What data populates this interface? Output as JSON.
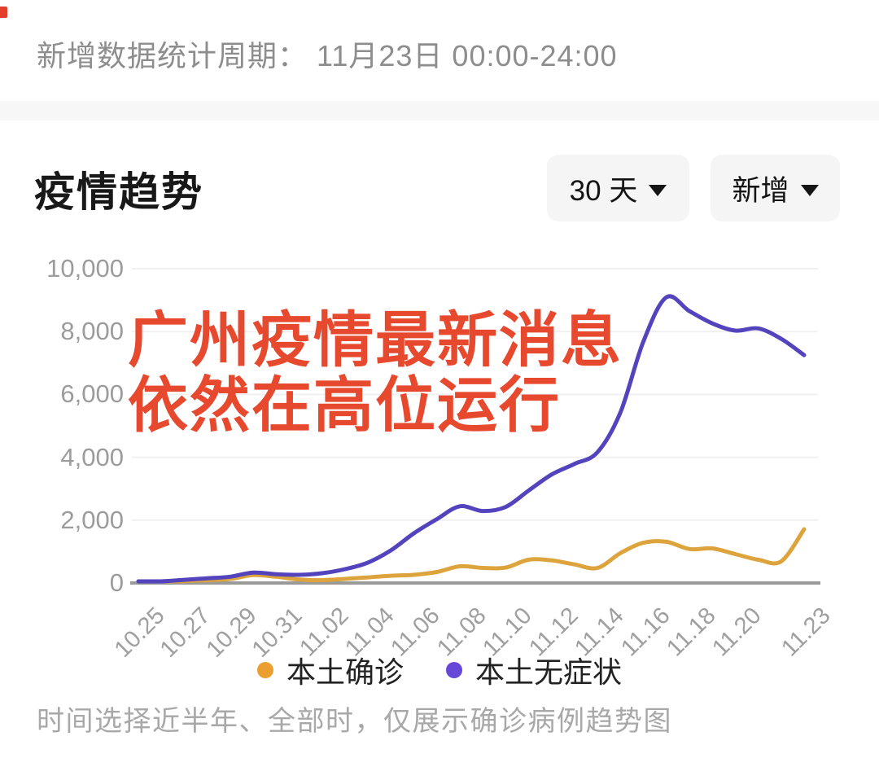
{
  "header": {
    "period_label": "新增数据统计周期： 11月23日 00:00-24:00"
  },
  "section": {
    "title": "疫情趋势",
    "range_dropdown": {
      "label": "30 天"
    },
    "metric_dropdown": {
      "label": "新增"
    }
  },
  "overlay": {
    "line1": "广州疫情最新消息",
    "line2": "依然在高位运行",
    "color": "#e7492f"
  },
  "footer": {
    "note": "时间选择近半年、全部时，仅展示确诊病例趋势图"
  },
  "chart_data": {
    "type": "line",
    "title": "疫情趋势",
    "x": [
      "10.25",
      "10.26",
      "10.27",
      "10.28",
      "10.29",
      "10.30",
      "10.31",
      "11.01",
      "11.02",
      "11.03",
      "11.04",
      "11.05",
      "11.06",
      "11.07",
      "11.08",
      "11.09",
      "11.10",
      "11.11",
      "11.12",
      "11.13",
      "11.14",
      "11.15",
      "11.16",
      "11.17",
      "11.18",
      "11.19",
      "11.20",
      "11.21",
      "11.22",
      "11.23"
    ],
    "x_tick_labels": [
      "10.25",
      "10.27",
      "10.29",
      "10.31",
      "11.02",
      "11.04",
      "11.06",
      "11.08",
      "11.10",
      "11.12",
      "11.14",
      "11.16",
      "11.18",
      "11.20",
      "11.23"
    ],
    "y_ticks": [
      0,
      2000,
      4000,
      6000,
      8000,
      10000
    ],
    "ylim": [
      0,
      10000
    ],
    "grid": true,
    "legend_position": "bottom",
    "axis_colors": {
      "gridline": "#f0f0f2",
      "zero_line": "#9a9a9a",
      "tick_text": "#9c9c9c"
    },
    "series": [
      {
        "name": "本土确诊",
        "color": "#dda43e",
        "dot_color": "#eb9f31",
        "values": [
          20,
          30,
          60,
          90,
          130,
          250,
          200,
          110,
          90,
          130,
          180,
          230,
          260,
          350,
          530,
          480,
          490,
          740,
          720,
          590,
          480,
          950,
          1280,
          1310,
          1080,
          1100,
          920,
          740,
          690,
          1710
        ]
      },
      {
        "name": "本土无症状",
        "color": "#5343bd",
        "dot_color": "#6747d8",
        "values": [
          30,
          50,
          100,
          150,
          200,
          330,
          280,
          260,
          310,
          440,
          650,
          1040,
          1580,
          2030,
          2440,
          2290,
          2420,
          2940,
          3450,
          3790,
          4160,
          5430,
          7690,
          9090,
          8650,
          8260,
          8030,
          8100,
          7770,
          7250
        ]
      }
    ]
  }
}
